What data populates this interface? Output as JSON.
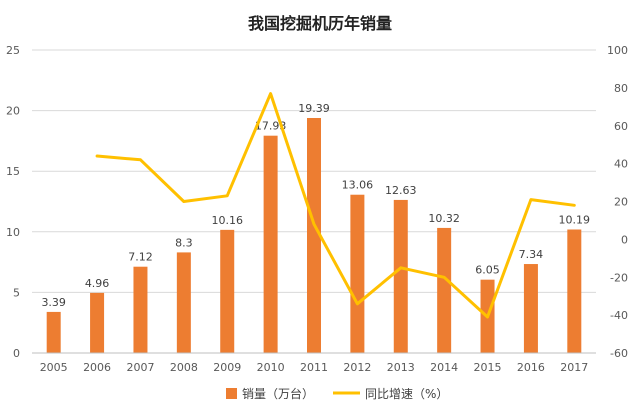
{
  "chart_data": {
    "type": "bar",
    "title": "我国挖掘机历年销量",
    "categories": [
      "2005",
      "2006",
      "2007",
      "2008",
      "2009",
      "2010",
      "2011",
      "2012",
      "2013",
      "2014",
      "2015",
      "2016",
      "2017"
    ],
    "series": [
      {
        "name": "销量（万台）",
        "type": "bar",
        "axis": "left",
        "color": "#ED7D31",
        "values": [
          3.39,
          4.96,
          7.12,
          8.3,
          10.16,
          17.93,
          19.39,
          13.06,
          12.63,
          10.32,
          6.05,
          7.34,
          10.19
        ],
        "labels": [
          "3.39",
          "4.96",
          "7.12",
          "8.3",
          "10.16",
          "17.93",
          "19.39",
          "13.06",
          "12.63",
          "10.32",
          "6.05",
          "7.34",
          "10.19"
        ]
      },
      {
        "name": "同比增速（%）",
        "type": "line",
        "axis": "right",
        "color": "#FFC000",
        "values": [
          null,
          44,
          42,
          20,
          23,
          77,
          8,
          -34,
          -15,
          -20,
          -41,
          21,
          18
        ]
      }
    ],
    "left_axis": {
      "min": 0,
      "max": 25,
      "ticks": [
        "0",
        "5",
        "10",
        "15",
        "20",
        "25"
      ]
    },
    "right_axis": {
      "min": -60,
      "max": 100,
      "ticks": [
        "-60",
        "-40",
        "-20",
        "0",
        "20",
        "40",
        "60",
        "80",
        "100"
      ]
    },
    "grid": true,
    "legend_position": "bottom"
  }
}
